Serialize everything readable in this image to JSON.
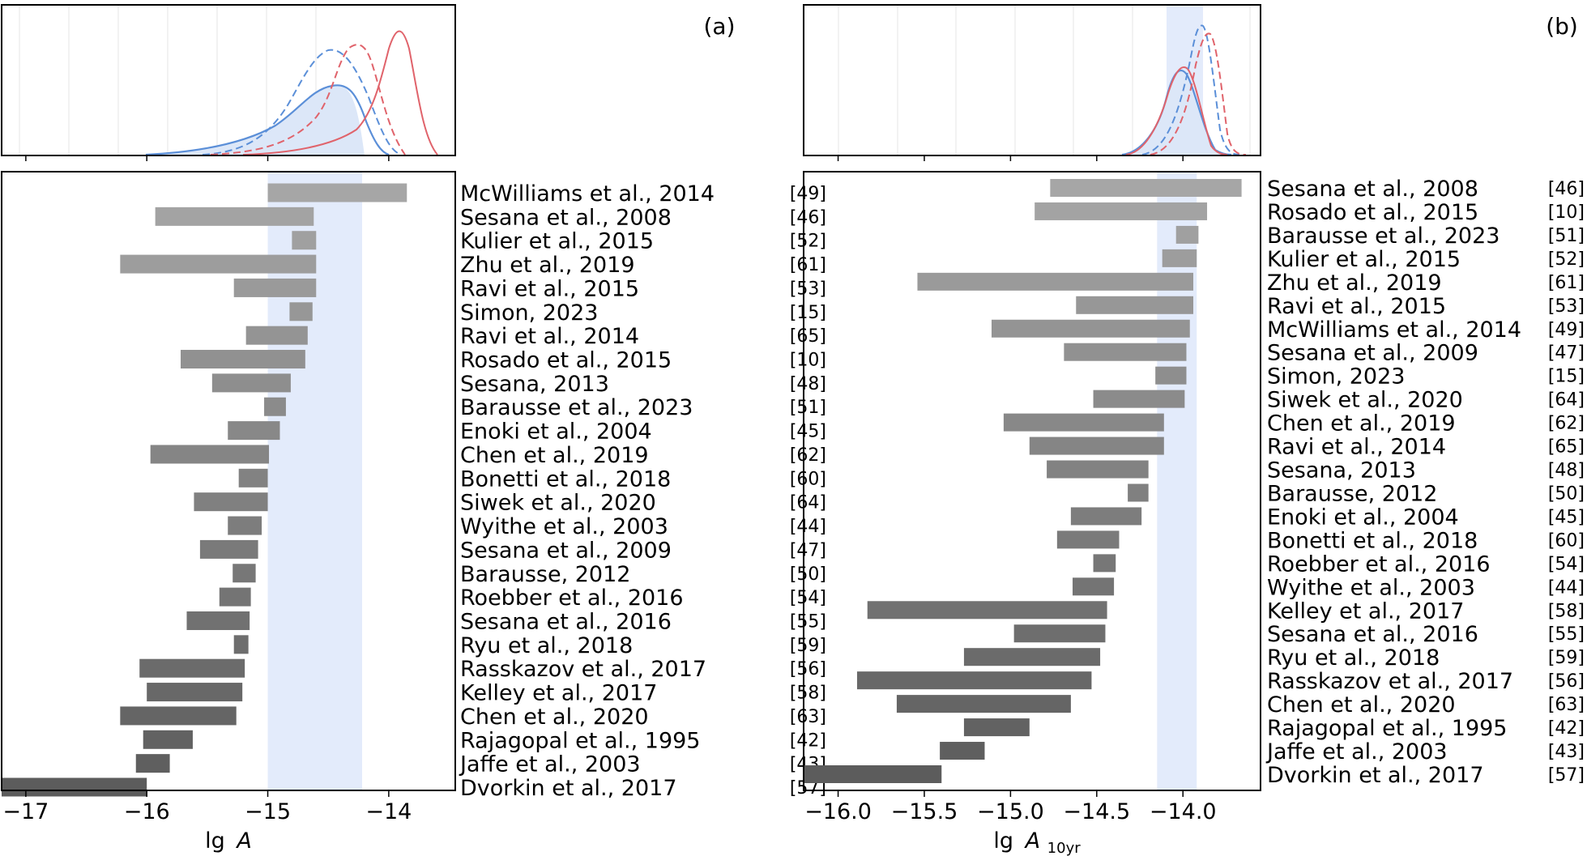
{
  "chart_data": [
    {
      "type": "bar",
      "orientation": "horizontal-range",
      "panel_label": "(a)",
      "xlabel": "lg A",
      "xlabel_main": "lg",
      "xlabel_var": "A",
      "xlim": [
        -17.2,
        -13.45
      ],
      "xticks": [
        -17,
        -16,
        -15,
        -14
      ],
      "xtick_labels": [
        "−17",
        "−16",
        "−15",
        "−14"
      ],
      "band": [
        -15.0,
        -14.22
      ],
      "colors": {
        "bar_light": "#a6a6a6",
        "bar_dark": "#5c5c5c",
        "band": "#e3ebfb",
        "blue": "#5b8fd8",
        "red": "#e0636b"
      },
      "series": [
        {
          "label": "McWilliams et al., 2014",
          "ref": "[49]",
          "low": -15.0,
          "high": -13.85
        },
        {
          "label": "Sesana et al., 2008",
          "ref": "[46]",
          "low": -15.93,
          "high": -14.62
        },
        {
          "label": "Kulier et al., 2015",
          "ref": "[52]",
          "low": -14.8,
          "high": -14.6
        },
        {
          "label": "Zhu et al., 2019",
          "ref": "[61]",
          "low": -16.22,
          "high": -14.6
        },
        {
          "label": "Ravi et al., 2015",
          "ref": "[53]",
          "low": -15.28,
          "high": -14.6
        },
        {
          "label": "Simon, 2023",
          "ref": "[15]",
          "low": -14.82,
          "high": -14.63
        },
        {
          "label": "Ravi et al., 2014",
          "ref": "[65]",
          "low": -15.18,
          "high": -14.67
        },
        {
          "label": "Rosado et al., 2015",
          "ref": "[10]",
          "low": -15.72,
          "high": -14.69
        },
        {
          "label": "Sesana, 2013",
          "ref": "[48]",
          "low": -15.46,
          "high": -14.81
        },
        {
          "label": "Barausse et al., 2023",
          "ref": "[51]",
          "low": -15.03,
          "high": -14.85
        },
        {
          "label": "Enoki et al., 2004",
          "ref": "[45]",
          "low": -15.33,
          "high": -14.9
        },
        {
          "label": "Chen et al., 2019",
          "ref": "[62]",
          "low": -15.97,
          "high": -14.99
        },
        {
          "label": "Bonetti et al., 2018",
          "ref": "[60]",
          "low": -15.24,
          "high": -15.0
        },
        {
          "label": "Siwek et al., 2020",
          "ref": "[64]",
          "low": -15.61,
          "high": -15.0
        },
        {
          "label": "Wyithe et al., 2003",
          "ref": "[44]",
          "low": -15.33,
          "high": -15.05
        },
        {
          "label": "Sesana et al., 2009",
          "ref": "[47]",
          "low": -15.56,
          "high": -15.08
        },
        {
          "label": "Barausse, 2012",
          "ref": "[50]",
          "low": -15.29,
          "high": -15.1
        },
        {
          "label": "Roebber et al., 2016",
          "ref": "[54]",
          "low": -15.4,
          "high": -15.14
        },
        {
          "label": "Sesana et al., 2016",
          "ref": "[55]",
          "low": -15.67,
          "high": -15.15
        },
        {
          "label": "Ryu et al., 2018",
          "ref": "[59]",
          "low": -15.28,
          "high": -15.16
        },
        {
          "label": "Rasskazov et al., 2017",
          "ref": "[56]",
          "low": -16.06,
          "high": -15.19
        },
        {
          "label": "Kelley et al., 2017",
          "ref": "[58]",
          "low": -16.0,
          "high": -15.21
        },
        {
          "label": "Chen et al., 2020",
          "ref": "[63]",
          "low": -16.22,
          "high": -15.26
        },
        {
          "label": "Rajagopal et al., 1995",
          "ref": "[42]",
          "low": -16.03,
          "high": -15.62
        },
        {
          "label": "Jaffe et al., 2003",
          "ref": "[43]",
          "low": -16.09,
          "high": -15.81
        },
        {
          "label": "Dvorkin et al., 2017",
          "ref": "[57]",
          "low": -17.2,
          "high": -16.0
        }
      ]
    },
    {
      "type": "bar",
      "orientation": "horizontal-range",
      "panel_label": "(b)",
      "xlabel": "lg A_10yr",
      "xlabel_main": "lg",
      "xlabel_var": "A",
      "xlabel_sub": "10yr",
      "xlim": [
        -16.2,
        -13.55
      ],
      "xticks": [
        -16.0,
        -15.5,
        -15.0,
        -14.5,
        -14.0
      ],
      "xtick_labels": [
        "−16.0",
        "−15.5",
        "−15.0",
        "−14.5",
        "−14.0"
      ],
      "band": [
        -14.15,
        -13.92
      ],
      "colors": {
        "bar_light": "#a6a6a6",
        "bar_dark": "#5c5c5c",
        "band": "#e3ebfb",
        "blue": "#5b8fd8",
        "red": "#e0636b"
      },
      "series": [
        {
          "label": "Sesana et al., 2008",
          "ref": "[46]",
          "low": -14.77,
          "high": -13.66
        },
        {
          "label": "Rosado et al., 2015",
          "ref": "[10]",
          "low": -14.86,
          "high": -13.86
        },
        {
          "label": "Barausse et al., 2023",
          "ref": "[51]",
          "low": -14.04,
          "high": -13.91
        },
        {
          "label": "Kulier et al., 2015",
          "ref": "[52]",
          "low": -14.12,
          "high": -13.92
        },
        {
          "label": "Zhu et al., 2019",
          "ref": "[61]",
          "low": -15.54,
          "high": -13.94
        },
        {
          "label": "Ravi et al., 2015",
          "ref": "[53]",
          "low": -14.62,
          "high": -13.94
        },
        {
          "label": "McWilliams et al., 2014",
          "ref": "[49]",
          "low": -15.11,
          "high": -13.96
        },
        {
          "label": "Sesana et al., 2009",
          "ref": "[47]",
          "low": -14.69,
          "high": -13.98
        },
        {
          "label": "Simon, 2023",
          "ref": "[15]",
          "low": -14.16,
          "high": -13.98
        },
        {
          "label": "Siwek et al., 2020",
          "ref": "[64]",
          "low": -14.52,
          "high": -13.99
        },
        {
          "label": "Chen et al., 2019",
          "ref": "[62]",
          "low": -15.04,
          "high": -14.11
        },
        {
          "label": "Ravi et al., 2014",
          "ref": "[65]",
          "low": -14.89,
          "high": -14.11
        },
        {
          "label": "Sesana, 2013",
          "ref": "[48]",
          "low": -14.79,
          "high": -14.2
        },
        {
          "label": "Barausse, 2012",
          "ref": "[50]",
          "low": -14.32,
          "high": -14.2
        },
        {
          "label": "Enoki et al., 2004",
          "ref": "[45]",
          "low": -14.65,
          "high": -14.24
        },
        {
          "label": "Bonetti et al., 2018",
          "ref": "[60]",
          "low": -14.73,
          "high": -14.37
        },
        {
          "label": "Roebber et al., 2016",
          "ref": "[54]",
          "low": -14.52,
          "high": -14.39
        },
        {
          "label": "Wyithe et al., 2003",
          "ref": "[44]",
          "low": -14.64,
          "high": -14.4
        },
        {
          "label": "Kelley et al., 2017",
          "ref": "[58]",
          "low": -15.83,
          "high": -14.44
        },
        {
          "label": "Sesana et al., 2016",
          "ref": "[55]",
          "low": -14.98,
          "high": -14.45
        },
        {
          "label": "Ryu et al., 2018",
          "ref": "[59]",
          "low": -15.27,
          "high": -14.48
        },
        {
          "label": "Rasskazov et al., 2017",
          "ref": "[56]",
          "low": -15.89,
          "high": -14.53
        },
        {
          "label": "Chen et al., 2020",
          "ref": "[63]",
          "low": -15.66,
          "high": -14.65
        },
        {
          "label": "Rajagopal et al., 1995",
          "ref": "[42]",
          "low": -15.27,
          "high": -14.89
        },
        {
          "label": "Jaffe et al., 2003",
          "ref": "[43]",
          "low": -15.41,
          "high": -15.15
        },
        {
          "label": "Dvorkin et al., 2017",
          "ref": "[57]",
          "low": -16.2,
          "high": -15.4
        }
      ]
    }
  ]
}
